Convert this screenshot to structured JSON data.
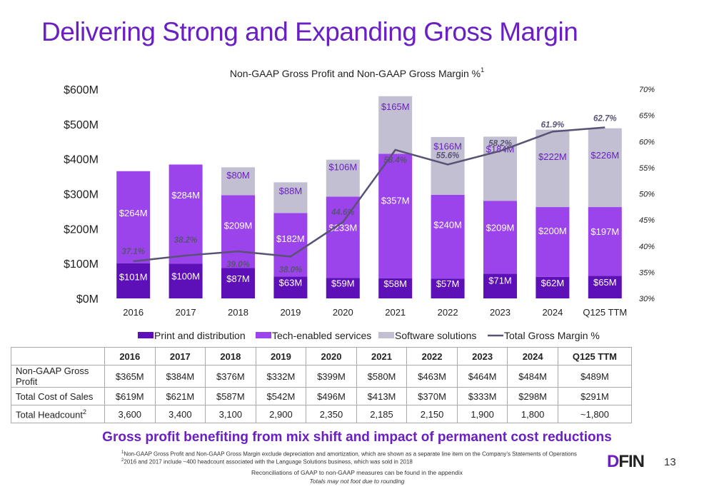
{
  "slide": {
    "title": "Delivering Strong and Expanding Gross Margin",
    "subtitle": "Gross profit benefiting from mix shift and impact of permanent cost reductions",
    "footnotes": [
      {
        "mark": "1",
        "text": "Non-GAAP Gross Profit and Non-GAAP Gross Margin exclude depreciation and amortization, which are shown as a separate line item on the Company’s Statements of Operations"
      },
      {
        "mark": "2",
        "text": "2016 and 2017 include ~400 headcount associated with the Language Solutions business, which was sold in 2018"
      }
    ],
    "note_reconciliation": "Reconciliations of GAAP to non-GAAP measures can be found in the appendix",
    "note_rounding": "Totals may not foot due to rounding",
    "logo_d": "D",
    "logo_rest": "FIN",
    "page_number": "13",
    "colors": {
      "accent": "#6a1fc2",
      "print": "#5e10b8",
      "tech": "#9b44ec",
      "software": "#c2bfd2",
      "line": "#5a5275"
    }
  },
  "chart_data": {
    "type": "bar",
    "title": "Non-GAAP Gross Profit and Non-GAAP Gross Margin %",
    "title_superscript": "1",
    "categories": [
      "2016",
      "2017",
      "2018",
      "2019",
      "2020",
      "2021",
      "2022",
      "2023",
      "2024",
      "Q125 TTM"
    ],
    "stacked": true,
    "series": [
      {
        "name": "Print and distribution",
        "values": [
          101,
          100,
          87,
          63,
          59,
          58,
          57,
          71,
          62,
          65
        ],
        "labels": [
          "$101M",
          "$100M",
          "$87M",
          "$63M",
          "$59M",
          "$58M",
          "$57M",
          "$71M",
          "$62M",
          "$65M"
        ]
      },
      {
        "name": "Tech-enabled services",
        "values": [
          264,
          284,
          209,
          182,
          233,
          357,
          240,
          209,
          200,
          197
        ],
        "labels": [
          "$264M",
          "$284M",
          "$209M",
          "$182M",
          "$233M",
          "$357M",
          "$240M",
          "$209M",
          "$200M",
          "$197M"
        ]
      },
      {
        "name": "Software solutions",
        "values": [
          0,
          0,
          80,
          88,
          106,
          165,
          166,
          184,
          222,
          226
        ],
        "labels": [
          "",
          "",
          "$80M",
          "$88M",
          "$106M",
          "$165M",
          "$166M",
          "$184M",
          "$222M",
          "$226M"
        ]
      }
    ],
    "line": {
      "name": "Total Gross Margin %",
      "values": [
        37.1,
        38.2,
        39.0,
        38.0,
        44.6,
        58.4,
        55.6,
        58.2,
        61.9,
        62.7
      ],
      "labels": [
        "37.1%",
        "38.2%",
        "39.0%",
        "38.0%",
        "44.6%",
        "58.4%",
        "55.6%",
        "58.2%",
        "61.9%",
        "62.7%"
      ]
    },
    "y_left": {
      "min": 0,
      "max": 600,
      "ticks": [
        0,
        100,
        200,
        300,
        400,
        500,
        600
      ],
      "tick_labels": [
        "$0M",
        "$100M",
        "$200M",
        "$300M",
        "$400M",
        "$500M",
        "$600M"
      ]
    },
    "y_right": {
      "min": 30,
      "max": 70,
      "ticks": [
        30,
        35,
        40,
        45,
        50,
        55,
        60,
        65,
        70
      ],
      "tick_labels": [
        "30%",
        "35%",
        "40%",
        "45%",
        "50%",
        "55%",
        "60%",
        "65%",
        "70%"
      ]
    },
    "legend_position": "bottom",
    "grid": false
  },
  "table": {
    "headers": [
      "",
      "2016",
      "2017",
      "2018",
      "2019",
      "2020",
      "2021",
      "2022",
      "2023",
      "2024",
      "Q125 TTM"
    ],
    "rows": [
      {
        "label": "Non-GAAP Gross Profit",
        "label_sup": "",
        "cells": [
          "$365M",
          "$384M",
          "$376M",
          "$332M",
          "$399M",
          "$580M",
          "$463M",
          "$464M",
          "$484M",
          "$489M"
        ]
      },
      {
        "label": "Total Cost of Sales",
        "label_sup": "",
        "cells": [
          "$619M",
          "$621M",
          "$587M",
          "$542M",
          "$496M",
          "$413M",
          "$370M",
          "$333M",
          "$298M",
          "$291M"
        ]
      },
      {
        "label": "Total Headcount",
        "label_sup": "2",
        "cells": [
          "3,600",
          "3,400",
          "3,100",
          "2,900",
          "2,350",
          "2,185",
          "2,150",
          "1,900",
          "1,800",
          "~1,800"
        ]
      }
    ]
  }
}
